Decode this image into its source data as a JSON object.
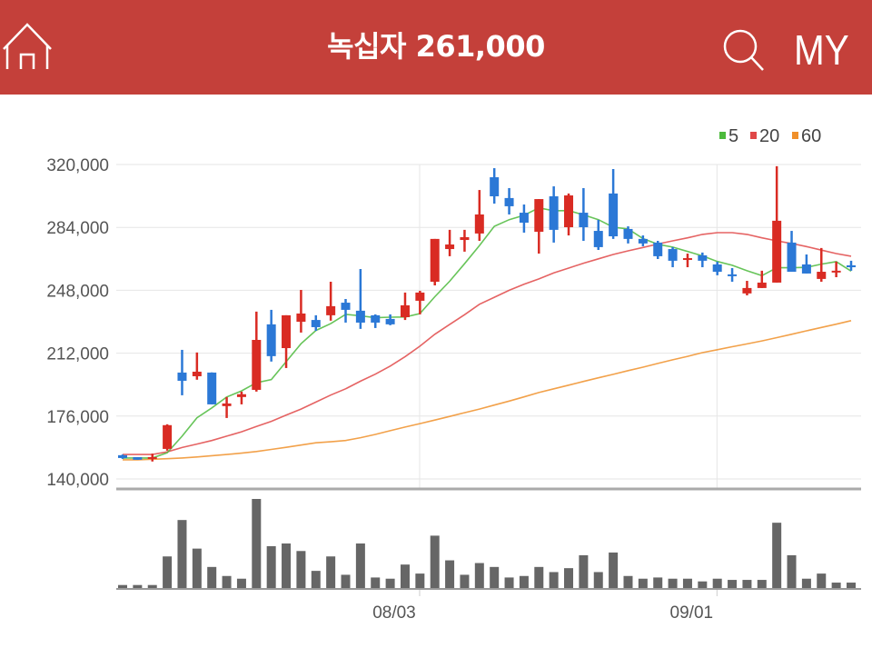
{
  "header": {
    "title": "녹십자 261,000",
    "home_icon": "home-icon",
    "search_icon": "search-icon",
    "my_label": "MY",
    "background_color": "#c4403a"
  },
  "chart_data": {
    "type": "candlestick",
    "title": "",
    "up_color": "#d92b23",
    "down_color": "#2b78d6",
    "ylim": [
      140000,
      320000
    ],
    "yticks": [
      140000,
      176000,
      212000,
      248000,
      284000,
      320000
    ],
    "ytick_labels": [
      "140,000",
      "176,000",
      "212,000",
      "248,000",
      "284,000",
      "320,000"
    ],
    "xtick_labels": [
      {
        "label": "08/03",
        "index": 20
      },
      {
        "label": "09/01",
        "index": 40
      }
    ],
    "grid": true,
    "legend": {
      "placement": "top-right",
      "entries": [
        {
          "label": "5",
          "color": "#4cba3c"
        },
        {
          "label": "20",
          "color": "#e04848"
        },
        {
          "label": "60",
          "color": "#f0902a"
        }
      ]
    },
    "ohlc": [
      [
        153600,
        154000,
        151500,
        152000
      ],
      [
        152500,
        152500,
        151000,
        151000
      ],
      [
        151500,
        154500,
        150000,
        152500
      ],
      [
        157200,
        171300,
        156200,
        170800
      ],
      [
        200900,
        213900,
        187900,
        196200
      ],
      [
        198800,
        212400,
        196800,
        201400
      ],
      [
        200900,
        201000,
        182700,
        182700
      ],
      [
        181700,
        186900,
        174900,
        183200
      ],
      [
        186900,
        190000,
        182700,
        188500
      ],
      [
        191000,
        235800,
        190000,
        219600
      ],
      [
        228500,
        236800,
        207200,
        210300
      ],
      [
        214900,
        233700,
        203500,
        233700
      ],
      [
        230000,
        248200,
        223800,
        234700
      ],
      [
        231000,
        233700,
        224800,
        226900
      ],
      [
        233700,
        252900,
        230600,
        238900
      ],
      [
        240900,
        243000,
        229500,
        236800
      ],
      [
        236300,
        260200,
        225900,
        229500
      ],
      [
        233700,
        234200,
        226400,
        229500
      ],
      [
        231600,
        234200,
        228000,
        228500
      ],
      [
        232600,
        246700,
        231000,
        239400
      ],
      [
        242000,
        247700,
        234200,
        246700
      ],
      [
        252900,
        277400,
        250800,
        277400
      ],
      [
        271600,
        282600,
        267500,
        274200
      ],
      [
        276800,
        282600,
        270100,
        278400
      ],
      [
        280500,
        305400,
        276300,
        291400
      ],
      [
        312700,
        317900,
        297600,
        301800
      ],
      [
        300800,
        306500,
        291400,
        296100
      ],
      [
        292400,
        297100,
        281000,
        286700
      ],
      [
        281500,
        300200,
        269000,
        300200
      ],
      [
        301800,
        307500,
        275300,
        282600
      ],
      [
        284100,
        303400,
        279400,
        302300
      ],
      [
        292400,
        306500,
        276300,
        284100
      ],
      [
        282000,
        288300,
        271100,
        272700
      ],
      [
        303400,
        317400,
        277400,
        278900
      ],
      [
        283100,
        284600,
        274800,
        277400
      ],
      [
        277400,
        279400,
        273200,
        274800
      ],
      [
        275300,
        276300,
        265900,
        267500
      ],
      [
        271600,
        272700,
        261200,
        264900
      ],
      [
        265400,
        269000,
        261200,
        266400
      ],
      [
        268000,
        269600,
        261200,
        264900
      ],
      [
        262800,
        264400,
        256600,
        258600
      ],
      [
        257100,
        260700,
        252900,
        256600
      ],
      [
        246200,
        253400,
        245100,
        249300
      ],
      [
        249300,
        259200,
        249300,
        252400
      ],
      [
        252400,
        319000,
        252400,
        287800
      ],
      [
        275300,
        282000,
        258600,
        258600
      ],
      [
        262800,
        268500,
        257600,
        257600
      ],
      [
        254500,
        272200,
        252900,
        258600
      ],
      [
        258600,
        264400,
        255500,
        259200
      ],
      [
        262300,
        264900,
        259200,
        261200
      ]
    ],
    "ma5": [
      152000,
      152000,
      152000,
      155000,
      164500,
      175000,
      180700,
      186900,
      190400,
      195100,
      196900,
      207100,
      217400,
      225000,
      228900,
      234200,
      233400,
      232300,
      232600,
      232700,
      234700,
      244300,
      253200,
      263200,
      273600,
      284600,
      288400,
      290900,
      295200,
      293500,
      293600,
      291200,
      288400,
      284100,
      283100,
      277600,
      274300,
      272700,
      270200,
      267700,
      264500,
      262300,
      259200,
      256400,
      260900,
      260900,
      261100,
      263000,
      264400,
      259000
    ],
    "ma20": [
      154000,
      154000,
      154000,
      155500,
      158000,
      160000,
      162000,
      164500,
      167000,
      170000,
      173000,
      176500,
      180000,
      184000,
      188000,
      191600,
      196000,
      200000,
      204600,
      210000,
      216000,
      222800,
      228500,
      234000,
      240000,
      244000,
      248000,
      251500,
      254500,
      258000,
      260700,
      263500,
      266000,
      268500,
      270600,
      272500,
      274500,
      276300,
      278000,
      280000,
      281000,
      281000,
      280000,
      278000,
      276300,
      274800,
      273000,
      271000,
      269000,
      267500
    ],
    "ma60": [
      151000,
      151000,
      151300,
      151600,
      152000,
      152600,
      153300,
      154000,
      154800,
      155700,
      156900,
      158100,
      159400,
      160700,
      161300,
      162000,
      163600,
      165500,
      167600,
      169700,
      171700,
      173700,
      175800,
      177900,
      180000,
      182300,
      184600,
      187000,
      189500,
      191600,
      193700,
      195800,
      197900,
      199900,
      202000,
      204000,
      206100,
      208200,
      210200,
      212300,
      214000,
      215700,
      217300,
      219000,
      220900,
      222800,
      224800,
      226700,
      228600,
      230600
    ],
    "volume_relative": [
      10,
      10,
      10,
      105,
      226,
      131,
      70,
      40,
      31,
      296,
      139,
      148,
      123,
      57,
      105,
      44,
      148,
      35,
      31,
      78,
      48,
      174,
      92,
      44,
      83,
      70,
      35,
      40,
      70,
      53,
      66,
      109,
      53,
      118,
      40,
      31,
      35,
      31,
      31,
      22,
      31,
      27,
      27,
      27,
      217,
      109,
      31,
      48,
      18,
      18
    ],
    "volume_color": "#666666"
  }
}
